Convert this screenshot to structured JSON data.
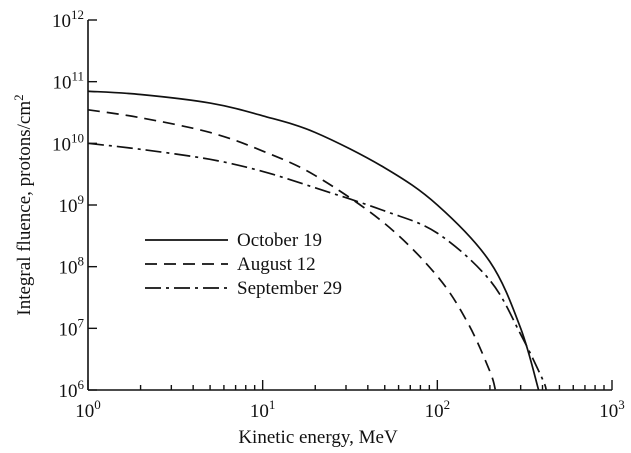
{
  "chart_data": {
    "type": "line",
    "xscale": "log",
    "yscale": "log",
    "xlim": [
      1,
      1000
    ],
    "ylim": [
      1000000,
      1000000000000
    ],
    "grid": false,
    "legend_position": "center-left",
    "xlabel": "Kinetic energy, MeV",
    "ylabel_main": "Integral fluence, protons/cm",
    "ylabel_sup": "2",
    "x_ticks": [
      {
        "base": "10",
        "exp": "0",
        "value": 1
      },
      {
        "base": "10",
        "exp": "1",
        "value": 10
      },
      {
        "base": "10",
        "exp": "2",
        "value": 100
      },
      {
        "base": "10",
        "exp": "3",
        "value": 1000
      }
    ],
    "y_ticks": [
      {
        "base": "10",
        "exp": "6",
        "value": 1000000
      },
      {
        "base": "10",
        "exp": "7",
        "value": 10000000
      },
      {
        "base": "10",
        "exp": "8",
        "value": 100000000
      },
      {
        "base": "10",
        "exp": "9",
        "value": 1000000000
      },
      {
        "base": "10",
        "exp": "10",
        "value": 10000000000
      },
      {
        "base": "10",
        "exp": "11",
        "value": 100000000000
      },
      {
        "base": "10",
        "exp": "12",
        "value": 1000000000000
      }
    ],
    "series": [
      {
        "name": "October 19",
        "dash": "solid",
        "x": [
          1,
          2,
          5,
          10,
          20,
          50,
          100,
          200,
          300,
          380
        ],
        "y": [
          70000000000,
          62000000000,
          45000000000,
          28000000000,
          15000000000,
          4000000000,
          1000000000,
          120000000,
          10000000,
          1000000
        ]
      },
      {
        "name": "August 12",
        "dash": "dashed",
        "x": [
          1,
          2,
          5,
          10,
          20,
          50,
          100,
          150,
          200,
          215
        ],
        "y": [
          35000000000,
          26000000000,
          15000000000,
          7500000000,
          3000000000,
          500000000,
          70000000,
          12000000,
          2000000,
          1000000
        ]
      },
      {
        "name": "September 29",
        "dash": "dashdot",
        "x": [
          1,
          2,
          5,
          10,
          20,
          50,
          100,
          200,
          300,
          400,
          420
        ],
        "y": [
          10000000000,
          8000000000,
          5500000000,
          3500000000,
          1900000000,
          800000000,
          350000000,
          60000000,
          8000000,
          1500000,
          1000000
        ]
      }
    ]
  }
}
